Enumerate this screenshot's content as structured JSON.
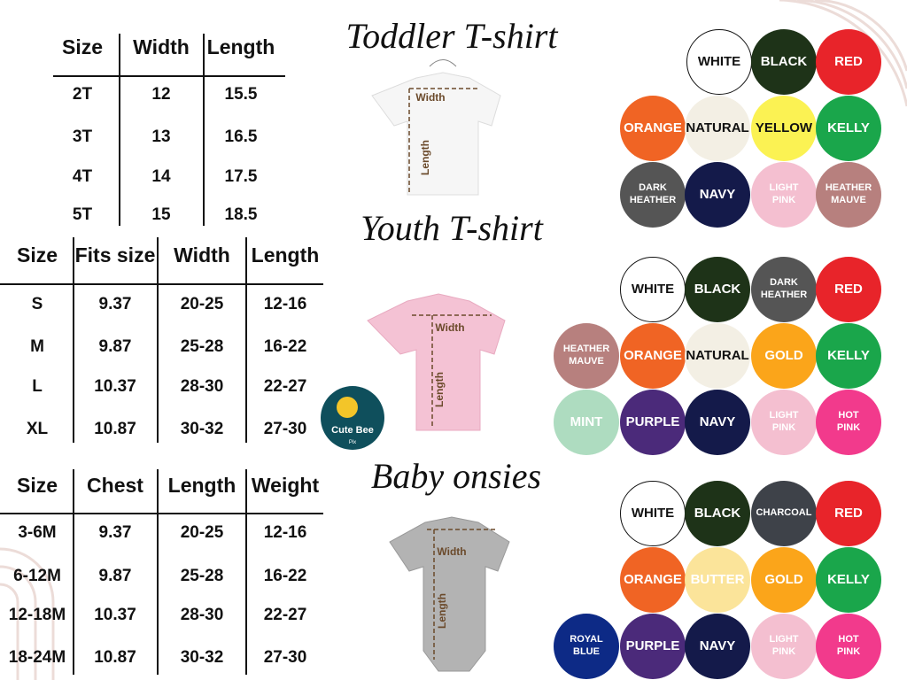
{
  "headings": [
    "Toddler T-shirt",
    "Youth T-shirt",
    "Baby onsies"
  ],
  "tables": [
    {
      "header": [
        "Size",
        "Width",
        "Length"
      ],
      "rows": [
        [
          "2T",
          "12",
          "15.5"
        ],
        [
          "3T",
          "13",
          "16.5"
        ],
        [
          "4T",
          "14",
          "17.5"
        ],
        [
          "5T",
          "15",
          "18.5"
        ]
      ]
    },
    {
      "header": [
        "Size",
        "Fits size",
        "Width",
        "Length"
      ],
      "rows": [
        [
          "S",
          "9.37",
          "20-25",
          "12-16"
        ],
        [
          "M",
          "9.87",
          "25-28",
          "16-22"
        ],
        [
          "L",
          "10.37",
          "28-30",
          "22-27"
        ],
        [
          "XL",
          "10.87",
          "30-32",
          "27-30"
        ]
      ]
    },
    {
      "header": [
        "Size",
        "Chest",
        "Length",
        "Weight"
      ],
      "rows": [
        [
          "3-6M",
          "9.37",
          "20-25",
          "12-16"
        ],
        [
          "6-12M",
          "9.87",
          "25-28",
          "16-22"
        ],
        [
          "12-18M",
          "10.37",
          "28-30",
          "22-27"
        ],
        [
          "18-24M",
          "10.87",
          "30-32",
          "27-30"
        ]
      ]
    }
  ],
  "garment_labels": {
    "width": "Width",
    "length": "Length"
  },
  "logo": {
    "name": "Cute Bee",
    "sub": "Pix"
  },
  "swatches": [
    [
      [
        {
          "label": "WHITE",
          "color": "#ffffff",
          "text": "#111"
        },
        {
          "label": "BLACK",
          "color": "#1e3318",
          "text": "#fff"
        },
        {
          "label": "RED",
          "color": "#e8242a",
          "text": "#fff"
        }
      ],
      [
        {
          "label": "ORANGE",
          "color": "#f06424",
          "text": "#fff"
        },
        {
          "label": "NATURAL",
          "color": "#f3efe4",
          "text": "#111"
        },
        {
          "label": "YELLOW",
          "color": "#fbf253",
          "text": "#111"
        },
        {
          "label": "KELLY",
          "color": "#1aa64b",
          "text": "#fff"
        }
      ],
      [
        {
          "label": "DARK\nHEATHER",
          "color": "#555555",
          "text": "#fff"
        },
        {
          "label": "NAVY",
          "color": "#141a4a",
          "text": "#fff"
        },
        {
          "label": "LIGHT\nPINK",
          "color": "#f4bfd0",
          "text": "#fff"
        },
        {
          "label": "HEATHER\nMAUVE",
          "color": "#b7807e",
          "text": "#fff"
        }
      ]
    ],
    [
      [
        {
          "label": "WHITE",
          "color": "#ffffff",
          "text": "#111"
        },
        {
          "label": "BLACK",
          "color": "#1e3318",
          "text": "#fff"
        },
        {
          "label": "DARK\nHEATHER",
          "color": "#555555",
          "text": "#fff"
        },
        {
          "label": "RED",
          "color": "#e8242a",
          "text": "#fff"
        }
      ],
      [
        {
          "label": "HEATHER\nMAUVE",
          "color": "#b7807e",
          "text": "#fff"
        },
        {
          "label": "ORANGE",
          "color": "#f06424",
          "text": "#fff"
        },
        {
          "label": "NATURAL",
          "color": "#f3efe4",
          "text": "#111"
        },
        {
          "label": "GOLD",
          "color": "#fba51a",
          "text": "#fff"
        },
        {
          "label": "KELLY",
          "color": "#1aa64b",
          "text": "#fff"
        }
      ],
      [
        {
          "label": "MINT",
          "color": "#aedcc0",
          "text": "#fff"
        },
        {
          "label": "PURPLE",
          "color": "#4b2a7a",
          "text": "#fff"
        },
        {
          "label": "NAVY",
          "color": "#141a4a",
          "text": "#fff"
        },
        {
          "label": "LIGHT\nPINK",
          "color": "#f4bfd0",
          "text": "#fff"
        },
        {
          "label": "HOT\nPINK",
          "color": "#f23a8c",
          "text": "#fff"
        }
      ]
    ],
    [
      [
        {
          "label": "WHITE",
          "color": "#ffffff",
          "text": "#111"
        },
        {
          "label": "BLACK",
          "color": "#1e3318",
          "text": "#fff"
        },
        {
          "label": "CHARCOAL",
          "color": "#3e4249",
          "text": "#fff"
        },
        {
          "label": "RED",
          "color": "#e8242a",
          "text": "#fff"
        }
      ],
      [
        {
          "label": "ORANGE",
          "color": "#f06424",
          "text": "#fff"
        },
        {
          "label": "BUTTER",
          "color": "#fbe49a",
          "text": "#fff"
        },
        {
          "label": "GOLD",
          "color": "#fba51a",
          "text": "#fff"
        },
        {
          "label": "KELLY",
          "color": "#1aa64b",
          "text": "#fff"
        }
      ],
      [
        {
          "label": "ROYAL\nBLUE",
          "color": "#0d2a86",
          "text": "#fff"
        },
        {
          "label": "PURPLE",
          "color": "#4b2a7a",
          "text": "#fff"
        },
        {
          "label": "NAVY",
          "color": "#141a4a",
          "text": "#fff"
        },
        {
          "label": "LIGHT\nPINK",
          "color": "#f4bfd0",
          "text": "#fff"
        },
        {
          "label": "HOT\nPINK",
          "color": "#f23a8c",
          "text": "#fff"
        }
      ]
    ]
  ]
}
